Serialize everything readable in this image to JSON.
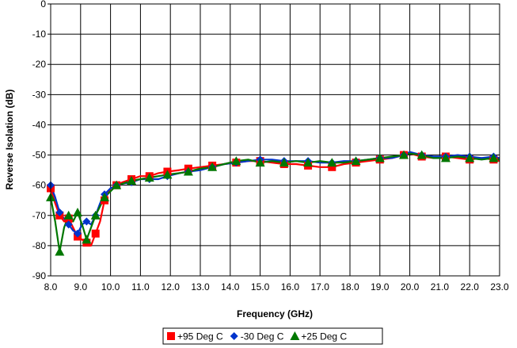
{
  "chart_data": {
    "type": "line",
    "title": "",
    "xlabel": "Frequency (GHz)",
    "ylabel": "Reverse Isolation (dB)",
    "xlim": [
      8.0,
      23.0
    ],
    "ylim": [
      -90,
      0
    ],
    "x_ticks": [
      "8.0",
      "9.0",
      "10.0",
      "11.0",
      "12.0",
      "13.0",
      "14.0",
      "15.0",
      "16.0",
      "17.0",
      "18.0",
      "19.0",
      "20.0",
      "21.0",
      "22.0",
      "23.0"
    ],
    "y_ticks": [
      "0",
      "-10",
      "-20",
      "-30",
      "-40",
      "-50",
      "-60",
      "-70",
      "-80",
      "-90"
    ],
    "grid": true,
    "legend_position": "bottom",
    "series": [
      {
        "name": "+95 Deg C",
        "color": "#ff0000",
        "marker": "square",
        "x": [
          8.0,
          8.15,
          8.3,
          8.45,
          8.6,
          8.75,
          8.9,
          9.05,
          9.2,
          9.35,
          9.5,
          9.65,
          9.8,
          10.0,
          10.2,
          10.4,
          10.7,
          11.0,
          11.3,
          11.6,
          11.9,
          12.3,
          12.6,
          13.0,
          13.4,
          13.8,
          14.2,
          14.6,
          15.0,
          15.4,
          15.8,
          16.2,
          16.6,
          17.0,
          17.4,
          17.8,
          18.2,
          18.6,
          19.0,
          19.4,
          19.8,
          20.0,
          20.4,
          20.8,
          21.2,
          21.6,
          22.0,
          22.4,
          22.8,
          23.0
        ],
        "y": [
          -61,
          -66,
          -70,
          -72,
          -71,
          -74,
          -77,
          -78,
          -79,
          -80,
          -76,
          -72,
          -65,
          -61,
          -60,
          -59,
          -58,
          -57,
          -57,
          -56,
          -55.5,
          -55,
          -54.5,
          -54,
          -53.5,
          -53,
          -52.5,
          -52,
          -52,
          -52.5,
          -53,
          -53,
          -53.5,
          -54,
          -54,
          -53,
          -52.5,
          -52,
          -51.5,
          -51,
          -50,
          -49.5,
          -50.5,
          -51,
          -50.5,
          -51,
          -51.5,
          -51,
          -51.5,
          -52
        ]
      },
      {
        "name": "-30 Deg C",
        "color": "#0033cc",
        "marker": "diamond",
        "x": [
          8.0,
          8.15,
          8.3,
          8.45,
          8.6,
          8.75,
          8.9,
          9.05,
          9.2,
          9.35,
          9.5,
          9.65,
          9.8,
          10.0,
          10.2,
          10.4,
          10.7,
          11.0,
          11.3,
          11.6,
          11.9,
          12.3,
          12.6,
          13.0,
          13.4,
          13.8,
          14.2,
          14.6,
          15.0,
          15.4,
          15.8,
          16.2,
          16.6,
          17.0,
          17.4,
          17.8,
          18.2,
          18.6,
          19.0,
          19.4,
          19.8,
          20.0,
          20.4,
          20.8,
          21.2,
          21.6,
          22.0,
          22.4,
          22.8,
          23.0
        ],
        "y": [
          -60,
          -64,
          -69,
          -71,
          -73,
          -75,
          -76,
          -73,
          -72,
          -73,
          -70,
          -66,
          -63,
          -61,
          -60,
          -59.5,
          -59,
          -58,
          -58,
          -58,
          -57,
          -56,
          -55.5,
          -55,
          -54,
          -53,
          -52.5,
          -52,
          -51.5,
          -51.5,
          -52,
          -52,
          -52,
          -52.5,
          -52.5,
          -52,
          -52,
          -51.5,
          -51,
          -51,
          -50,
          -49,
          -50,
          -50.5,
          -50.5,
          -50,
          -50.5,
          -51,
          -50.5,
          -51
        ]
      },
      {
        "name": "+25 Deg C",
        "color": "#007700",
        "marker": "triangle",
        "x": [
          8.0,
          8.15,
          8.3,
          8.45,
          8.6,
          8.75,
          8.9,
          9.05,
          9.2,
          9.35,
          9.5,
          9.65,
          9.8,
          10.0,
          10.2,
          10.4,
          10.7,
          11.0,
          11.3,
          11.6,
          11.9,
          12.3,
          12.6,
          13.0,
          13.4,
          13.8,
          14.2,
          14.6,
          15.0,
          15.4,
          15.8,
          16.2,
          16.6,
          17.0,
          17.4,
          17.8,
          18.2,
          18.6,
          19.0,
          19.4,
          19.8,
          20.0,
          20.4,
          20.8,
          21.2,
          21.6,
          22.0,
          22.4,
          22.8,
          23.0
        ],
        "y": [
          -64,
          -72,
          -82,
          -74,
          -70,
          -72,
          -69,
          -73,
          -78,
          -74,
          -70,
          -67,
          -64,
          -62,
          -60,
          -59.5,
          -58.5,
          -58,
          -57.5,
          -57,
          -56.5,
          -56,
          -55.5,
          -54.5,
          -54,
          -53,
          -52,
          -51.5,
          -52.5,
          -52,
          -52.5,
          -52,
          -52.5,
          -52,
          -52.5,
          -52.5,
          -52,
          -51.5,
          -51,
          -50.5,
          -50,
          -49.5,
          -50,
          -51,
          -51,
          -50.5,
          -51,
          -51.5,
          -51,
          -51.5
        ]
      }
    ]
  }
}
